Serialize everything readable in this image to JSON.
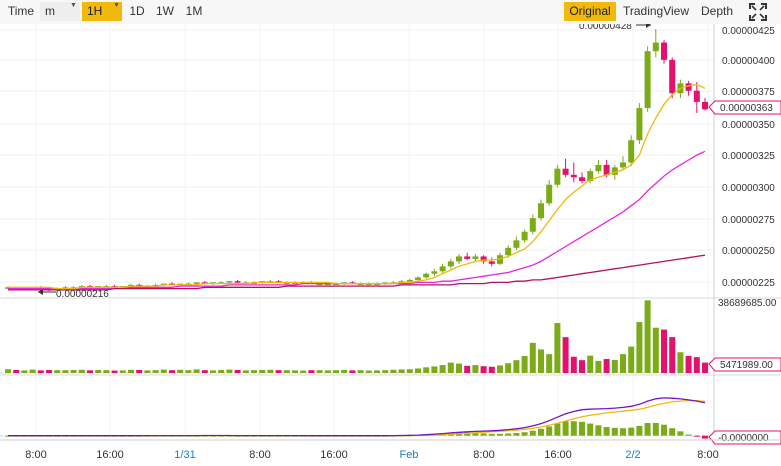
{
  "toolbar": {
    "time_label": "Time",
    "minute_select": "m",
    "interval_selected": "1H",
    "intervals": [
      "1D",
      "1W",
      "1M"
    ],
    "view_modes": [
      "Original",
      "TradingView",
      "Depth"
    ],
    "active_view": "Original",
    "expand_icon": "expand-icon",
    "accent_color": "#f0b90b"
  },
  "chart_data": [
    {
      "type": "candlestick",
      "interval": "1H",
      "ylim": [
        2.12e-06,
        4.32e-06
      ],
      "y_ticks": [
        "0.00000425",
        "0.00000400",
        "0.00000375",
        "0.00000350",
        "0.00000325",
        "0.00000300",
        "0.00000275",
        "0.00000250",
        "0.00000225"
      ],
      "x_ticks": [
        "8:00",
        "16:00",
        "1/31",
        "8:00",
        "16:00",
        "Feb",
        "8:00",
        "16:00",
        "2/2",
        "8:00"
      ],
      "last_price": "0.00000363",
      "max_annotation": "0.00000428",
      "min_annotation": "0.00000216",
      "up_color": "#7bab17",
      "down_color": "#e3116b",
      "candles": [
        [
          2.19,
          2.2,
          2.18,
          2.19
        ],
        [
          2.19,
          2.19,
          2.17,
          2.18
        ],
        [
          2.18,
          2.19,
          2.17,
          2.18
        ],
        [
          2.18,
          2.19,
          2.17,
          2.19
        ],
        [
          2.19,
          2.2,
          2.17,
          2.18
        ],
        [
          2.18,
          2.19,
          2.16,
          2.17
        ],
        [
          2.17,
          2.19,
          2.16,
          2.18
        ],
        [
          2.18,
          2.2,
          2.17,
          2.19
        ],
        [
          2.19,
          2.2,
          2.18,
          2.19
        ],
        [
          2.19,
          2.21,
          2.18,
          2.2
        ],
        [
          2.2,
          2.21,
          2.19,
          2.19
        ],
        [
          2.19,
          2.2,
          2.18,
          2.2
        ],
        [
          2.2,
          2.21,
          2.19,
          2.2
        ],
        [
          2.2,
          2.21,
          2.19,
          2.19
        ],
        [
          2.19,
          2.2,
          2.18,
          2.2
        ],
        [
          2.2,
          2.22,
          2.19,
          2.21
        ],
        [
          2.21,
          2.22,
          2.19,
          2.2
        ],
        [
          2.2,
          2.21,
          2.19,
          2.2
        ],
        [
          2.2,
          2.22,
          2.19,
          2.21
        ],
        [
          2.21,
          2.22,
          2.2,
          2.22
        ],
        [
          2.22,
          2.23,
          2.21,
          2.21
        ],
        [
          2.21,
          2.22,
          2.2,
          2.22
        ],
        [
          2.22,
          2.23,
          2.21,
          2.22
        ],
        [
          2.22,
          2.23,
          2.21,
          2.23
        ],
        [
          2.23,
          2.24,
          2.22,
          2.22
        ],
        [
          2.22,
          2.23,
          2.21,
          2.23
        ],
        [
          2.23,
          2.24,
          2.22,
          2.23
        ],
        [
          2.23,
          2.24,
          2.22,
          2.24
        ],
        [
          2.24,
          2.25,
          2.22,
          2.23
        ],
        [
          2.23,
          2.24,
          2.22,
          2.23
        ],
        [
          2.23,
          2.24,
          2.22,
          2.23
        ],
        [
          2.23,
          2.24,
          2.22,
          2.24
        ],
        [
          2.24,
          2.25,
          2.23,
          2.24
        ],
        [
          2.24,
          2.25,
          2.23,
          2.23
        ],
        [
          2.23,
          2.24,
          2.22,
          2.23
        ],
        [
          2.23,
          2.24,
          2.22,
          2.23
        ],
        [
          2.23,
          2.24,
          2.22,
          2.23
        ],
        [
          2.23,
          2.24,
          2.22,
          2.22
        ],
        [
          2.22,
          2.23,
          2.21,
          2.22
        ],
        [
          2.22,
          2.23,
          2.21,
          2.22
        ],
        [
          2.22,
          2.23,
          2.21,
          2.22
        ],
        [
          2.22,
          2.23,
          2.21,
          2.23
        ],
        [
          2.23,
          2.24,
          2.22,
          2.22
        ],
        [
          2.22,
          2.23,
          2.21,
          2.22
        ],
        [
          2.22,
          2.23,
          2.21,
          2.22
        ],
        [
          2.22,
          2.23,
          2.21,
          2.22
        ],
        [
          2.22,
          2.23,
          2.21,
          2.23
        ],
        [
          2.23,
          2.24,
          2.22,
          2.23
        ],
        [
          2.23,
          2.25,
          2.22,
          2.24
        ],
        [
          2.24,
          2.26,
          2.23,
          2.25
        ],
        [
          2.25,
          2.28,
          2.24,
          2.27
        ],
        [
          2.27,
          2.31,
          2.26,
          2.3
        ],
        [
          2.3,
          2.34,
          2.28,
          2.32
        ],
        [
          2.32,
          2.38,
          2.3,
          2.36
        ],
        [
          2.36,
          2.42,
          2.34,
          2.4
        ],
        [
          2.4,
          2.46,
          2.38,
          2.44
        ],
        [
          2.44,
          2.47,
          2.41,
          2.42
        ],
        [
          2.42,
          2.46,
          2.4,
          2.44
        ],
        [
          2.44,
          2.45,
          2.38,
          2.4
        ],
        [
          2.4,
          2.43,
          2.36,
          2.38
        ],
        [
          2.38,
          2.47,
          2.37,
          2.45
        ],
        [
          2.45,
          2.53,
          2.43,
          2.51
        ],
        [
          2.51,
          2.6,
          2.49,
          2.57
        ],
        [
          2.57,
          2.66,
          2.55,
          2.64
        ],
        [
          2.64,
          2.78,
          2.62,
          2.75
        ],
        [
          2.75,
          2.9,
          2.73,
          2.87
        ],
        [
          2.87,
          3.06,
          2.85,
          3.02
        ],
        [
          3.02,
          3.18,
          3.0,
          3.15
        ],
        [
          3.15,
          3.23,
          3.08,
          3.1
        ],
        [
          3.1,
          3.2,
          3.04,
          3.08
        ],
        [
          3.08,
          3.12,
          3.03,
          3.05
        ],
        [
          3.05,
          3.15,
          3.03,
          3.13
        ],
        [
          3.13,
          3.22,
          3.11,
          3.18
        ],
        [
          3.18,
          3.22,
          3.08,
          3.1
        ],
        [
          3.1,
          3.18,
          3.06,
          3.16
        ],
        [
          3.16,
          3.25,
          3.14,
          3.2
        ],
        [
          3.2,
          3.42,
          3.17,
          3.38
        ],
        [
          3.38,
          3.68,
          3.35,
          3.64
        ],
        [
          3.64,
          4.14,
          3.61,
          4.1
        ],
        [
          4.1,
          4.28,
          4.05,
          4.17
        ],
        [
          4.17,
          4.19,
          4.0,
          4.03
        ],
        [
          4.03,
          4.05,
          3.72,
          3.76
        ],
        [
          3.76,
          3.87,
          3.72,
          3.84
        ],
        [
          3.84,
          3.86,
          3.74,
          3.78
        ],
        [
          3.78,
          3.85,
          3.6,
          3.69
        ],
        [
          3.69,
          3.72,
          3.62,
          3.63
        ]
      ],
      "ma_short": [
        2.19,
        2.19,
        2.19,
        2.19,
        2.19,
        2.19,
        2.18,
        2.18,
        2.18,
        2.19,
        2.19,
        2.19,
        2.19,
        2.19,
        2.19,
        2.2,
        2.2,
        2.2,
        2.2,
        2.21,
        2.21,
        2.21,
        2.21,
        2.21,
        2.22,
        2.22,
        2.22,
        2.22,
        2.22,
        2.22,
        2.23,
        2.23,
        2.23,
        2.23,
        2.23,
        2.23,
        2.23,
        2.23,
        2.23,
        2.23,
        2.22,
        2.22,
        2.22,
        2.22,
        2.22,
        2.22,
        2.22,
        2.22,
        2.23,
        2.23,
        2.24,
        2.25,
        2.27,
        2.3,
        2.33,
        2.36,
        2.38,
        2.4,
        2.41,
        2.41,
        2.42,
        2.44,
        2.47,
        2.5,
        2.56,
        2.64,
        2.73,
        2.82,
        2.9,
        2.96,
        3.01,
        3.06,
        3.08,
        3.1,
        3.12,
        3.14,
        3.18,
        3.26,
        3.43,
        3.56,
        3.67,
        3.75,
        3.8,
        3.82,
        3.83,
        3.8
      ],
      "ma_mid": [
        2.18,
        2.18,
        2.18,
        2.18,
        2.18,
        2.18,
        2.18,
        2.18,
        2.18,
        2.18,
        2.18,
        2.18,
        2.18,
        2.19,
        2.19,
        2.19,
        2.19,
        2.19,
        2.19,
        2.19,
        2.19,
        2.2,
        2.2,
        2.2,
        2.2,
        2.2,
        2.2,
        2.21,
        2.21,
        2.21,
        2.21,
        2.21,
        2.21,
        2.21,
        2.21,
        2.21,
        2.22,
        2.22,
        2.22,
        2.22,
        2.22,
        2.22,
        2.22,
        2.22,
        2.22,
        2.22,
        2.22,
        2.22,
        2.22,
        2.22,
        2.23,
        2.23,
        2.23,
        2.24,
        2.24,
        2.25,
        2.26,
        2.27,
        2.28,
        2.29,
        2.3,
        2.31,
        2.33,
        2.35,
        2.37,
        2.4,
        2.44,
        2.48,
        2.52,
        2.56,
        2.6,
        2.64,
        2.68,
        2.72,
        2.76,
        2.8,
        2.85,
        2.9,
        2.97,
        3.03,
        3.09,
        3.14,
        3.18,
        3.22,
        3.26,
        3.29
      ],
      "ma_long": [
        2.17,
        2.17,
        2.17,
        2.17,
        2.17,
        2.17,
        2.17,
        2.17,
        2.17,
        2.17,
        2.17,
        2.17,
        2.17,
        2.18,
        2.18,
        2.18,
        2.18,
        2.18,
        2.18,
        2.18,
        2.18,
        2.18,
        2.18,
        2.18,
        2.19,
        2.19,
        2.19,
        2.19,
        2.19,
        2.19,
        2.19,
        2.19,
        2.19,
        2.19,
        2.2,
        2.2,
        2.2,
        2.2,
        2.2,
        2.2,
        2.2,
        2.2,
        2.2,
        2.2,
        2.2,
        2.2,
        2.2,
        2.2,
        2.21,
        2.21,
        2.21,
        2.21,
        2.21,
        2.21,
        2.21,
        2.22,
        2.22,
        2.22,
        2.22,
        2.23,
        2.23,
        2.23,
        2.24,
        2.24,
        2.25,
        2.25,
        2.26,
        2.27,
        2.28,
        2.29,
        2.3,
        2.31,
        2.32,
        2.33,
        2.34,
        2.35,
        2.36,
        2.37,
        2.38,
        2.39,
        2.4,
        2.41,
        2.42,
        2.43,
        2.44,
        2.45
      ]
    },
    {
      "type": "bar",
      "name": "volume",
      "y_ticks": [
        "38689685.00",
        "5471989.00"
      ],
      "ylim": [
        0,
        38689685
      ],
      "values": [
        2.0,
        1.6,
        1.4,
        1.8,
        1.4,
        1.6,
        1.5,
        1.5,
        1.6,
        1.7,
        1.4,
        1.6,
        1.5,
        1.3,
        1.4,
        1.7,
        1.6,
        1.4,
        1.5,
        1.8,
        1.5,
        1.7,
        1.5,
        1.9,
        1.5,
        1.4,
        1.6,
        1.8,
        1.6,
        1.4,
        1.5,
        1.6,
        1.7,
        1.5,
        1.5,
        1.4,
        1.3,
        1.5,
        1.5,
        1.4,
        1.5,
        1.6,
        1.4,
        1.5,
        1.3,
        1.4,
        1.5,
        1.7,
        1.9,
        2.0,
        2.4,
        3.0,
        3.5,
        4.2,
        5.5,
        5.0,
        3.8,
        4.2,
        3.6,
        3.3,
        4.0,
        5.2,
        6.8,
        9.0,
        16.0,
        12.5,
        10.0,
        26.5,
        19.0,
        8.6,
        6.8,
        9.2,
        6.4,
        7.4,
        6.9,
        10.0,
        14.0,
        27.0,
        38.5,
        24.0,
        23.0,
        19.0,
        11.0,
        9.0,
        8.4,
        5.5
      ]
    },
    {
      "type": "line",
      "name": "indicator",
      "y_ticks": [
        "-0.0000000"
      ],
      "ylim": [
        -4e-08,
        1e-06
      ],
      "macd": [
        0.0,
        0.0,
        0.0,
        0.0,
        0.0,
        0.0,
        0.0,
        0.0,
        0.0,
        0.0,
        0.0,
        0.0,
        0.0,
        0.0,
        0.0,
        0.0,
        0.0,
        0.001,
        0.001,
        0.001,
        0.002,
        0.002,
        0.002,
        0.002,
        0.003,
        0.003,
        0.003,
        0.003,
        0.002,
        0.002,
        0.002,
        0.002,
        0.002,
        0.001,
        0.001,
        0.001,
        0.0,
        0.0,
        0.0,
        0.0,
        0.0,
        0.0,
        0.0,
        0.0,
        0.0,
        0.0,
        0.0,
        0.001,
        0.003,
        0.006,
        0.011,
        0.018,
        0.027,
        0.037,
        0.048,
        0.059,
        0.068,
        0.075,
        0.08,
        0.085,
        0.093,
        0.105,
        0.12,
        0.14,
        0.17,
        0.21,
        0.26,
        0.32,
        0.38,
        0.42,
        0.45,
        0.46,
        0.465,
        0.47,
        0.478,
        0.49,
        0.51,
        0.545,
        0.6,
        0.64,
        0.655,
        0.65,
        0.638,
        0.62,
        0.6,
        0.57
      ],
      "signal": [
        0.0,
        0.0,
        0.0,
        0.0,
        0.0,
        0.0,
        0.0,
        0.0,
        0.0,
        0.0,
        0.0,
        0.0,
        0.0,
        0.0,
        0.0,
        0.0,
        0.0,
        0.0,
        0.0,
        0.001,
        0.001,
        0.001,
        0.001,
        0.002,
        0.002,
        0.002,
        0.002,
        0.002,
        0.002,
        0.002,
        0.002,
        0.002,
        0.002,
        0.002,
        0.001,
        0.001,
        0.001,
        0.001,
        0.0,
        0.0,
        0.0,
        0.0,
        0.0,
        0.0,
        0.0,
        0.0,
        0.0,
        0.0,
        0.001,
        0.002,
        0.004,
        0.007,
        0.011,
        0.016,
        0.023,
        0.031,
        0.04,
        0.05,
        0.06,
        0.069,
        0.077,
        0.086,
        0.097,
        0.11,
        0.127,
        0.15,
        0.18,
        0.215,
        0.255,
        0.295,
        0.33,
        0.355,
        0.375,
        0.395,
        0.41,
        0.425,
        0.44,
        0.46,
        0.49,
        0.53,
        0.56,
        0.585,
        0.6,
        0.61,
        0.608,
        0.595
      ],
      "hist": [
        0.0,
        0.0,
        0.0,
        0.0,
        0.0,
        0.0,
        0.0,
        0.0,
        0.0,
        0.0,
        0.0,
        0.0,
        0.0,
        0.0,
        0.0,
        0.0,
        0.0,
        0.0,
        0.001,
        0.001,
        0.001,
        0.001,
        0.001,
        0.001,
        0.001,
        0.001,
        0.001,
        0.001,
        0.0,
        0.0,
        0.0,
        0.0,
        0.0,
        0.0,
        0.0,
        0.0,
        0.0,
        0.0,
        0.0,
        0.0,
        0.0,
        0.0,
        0.0,
        0.0,
        0.0,
        0.0,
        0.0,
        0.001,
        0.004,
        0.008,
        0.014,
        0.022,
        0.032,
        0.042,
        0.05,
        0.058,
        0.056,
        0.05,
        0.04,
        0.032,
        0.032,
        0.038,
        0.046,
        0.06,
        0.086,
        0.12,
        0.16,
        0.21,
        0.25,
        0.25,
        0.24,
        0.21,
        0.18,
        0.15,
        0.136,
        0.13,
        0.14,
        0.17,
        0.22,
        0.22,
        0.19,
        0.13,
        0.076,
        0.02,
        -0.016,
        -0.05
      ]
    }
  ]
}
